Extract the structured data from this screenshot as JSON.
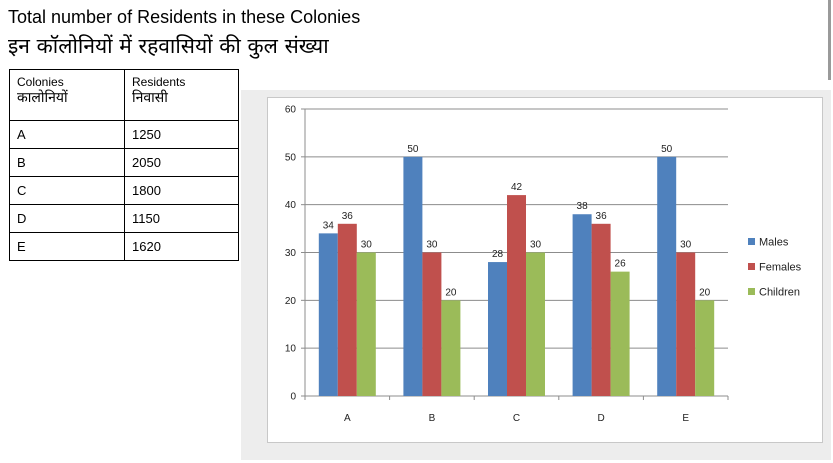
{
  "title_en": "Total number of Residents in these Colonies",
  "title_hi": "इन कॉलोनियों में रहवासियों की कुल संख्या",
  "table": {
    "headers": [
      {
        "en": "Colonies",
        "hi": "कालोनियों"
      },
      {
        "en": "Residents",
        "hi": "निवासी"
      }
    ],
    "rows": [
      [
        "A",
        "1250"
      ],
      [
        "B",
        "2050"
      ],
      [
        "C",
        "1800"
      ],
      [
        "D",
        "1150"
      ],
      [
        "E",
        "1620"
      ]
    ]
  },
  "chart_data": {
    "type": "bar",
    "categories": [
      "A",
      "B",
      "C",
      "D",
      "E"
    ],
    "series": [
      {
        "name": "Males",
        "color": "#4f81bd",
        "values": [
          34,
          50,
          28,
          38,
          50
        ]
      },
      {
        "name": "Females",
        "color": "#c0504d",
        "values": [
          36,
          30,
          42,
          36,
          30
        ]
      },
      {
        "name": "Children",
        "color": "#9bbb59",
        "values": [
          30,
          20,
          30,
          26,
          20
        ]
      }
    ],
    "ylim": [
      0,
      60
    ],
    "yticks": [
      0,
      10,
      20,
      30,
      40,
      50,
      60
    ],
    "grid": true,
    "legend": "right"
  }
}
